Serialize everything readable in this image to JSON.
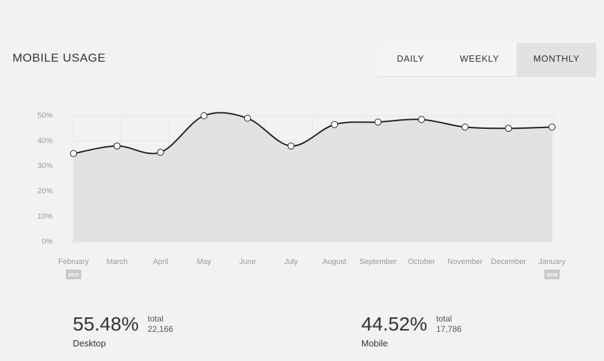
{
  "header": {
    "title": "MOBILE USAGE"
  },
  "tabs": {
    "items": [
      "DAILY",
      "WEEKLY",
      "MONTHLY"
    ],
    "selected": 2
  },
  "chart_data": {
    "type": "area-line",
    "categories": [
      "February",
      "March",
      "April",
      "May",
      "June",
      "July",
      "August",
      "September",
      "October",
      "November",
      "December",
      "January"
    ],
    "start_year": "2015",
    "end_year": "2016",
    "values": [
      35,
      38,
      35.5,
      50,
      49,
      38,
      46.5,
      47.5,
      48.5,
      45.5,
      45,
      45.5
    ],
    "color": "#222222",
    "fill": "#dddddd",
    "ylim": [
      0,
      50
    ],
    "yticks": [
      {
        "value": 0,
        "label": "0%"
      },
      {
        "value": 10,
        "label": "10%"
      },
      {
        "value": 20,
        "label": "20%"
      },
      {
        "value": 30,
        "label": "30%"
      },
      {
        "value": 40,
        "label": "40%"
      },
      {
        "value": 50,
        "label": "50%"
      }
    ],
    "grid": true
  },
  "stats": [
    {
      "percent": "55.48%",
      "total_label": "total",
      "total": "22,166",
      "label": "Desktop"
    },
    {
      "percent": "44.52%",
      "total_label": "total",
      "total": "17,786",
      "label": "Mobile"
    }
  ]
}
